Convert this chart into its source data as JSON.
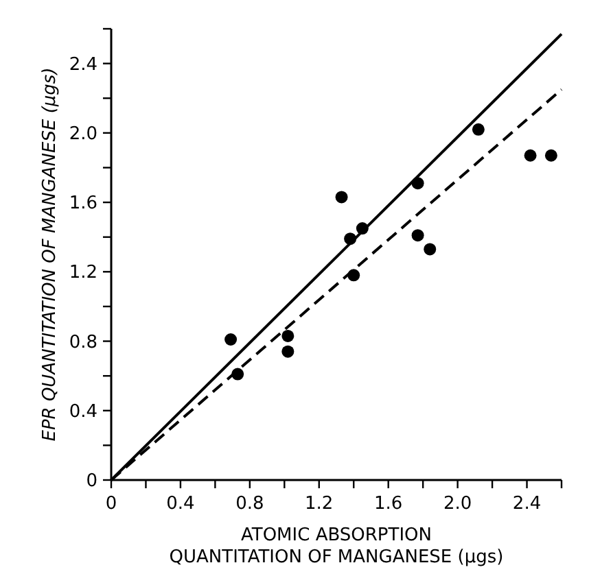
{
  "chart_data": {
    "type": "scatter",
    "xlabel": "ATOMIC ABSORPTION\nQUANTITATION OF MANGANESE (μgs)",
    "ylabel": "EPR QUANTITATION OF MANGANESE (μgs)",
    "xlim": [
      0,
      2.6
    ],
    "ylim": [
      0,
      2.6
    ],
    "xticks": [
      0,
      {
        "value": 0.2,
        "label": null
      },
      0.4,
      {
        "value": 0.6,
        "label": null
      },
      0.8,
      {
        "value": 1.0,
        "label": null
      },
      1.2,
      {
        "value": 1.4,
        "label": null
      },
      1.6,
      {
        "value": 1.8,
        "label": null
      },
      {
        "value": 2.0,
        "label": "2.0"
      },
      {
        "value": 2.2,
        "label": null
      },
      2.4,
      {
        "value": 2.6,
        "label": null
      }
    ],
    "yticks": [
      0,
      {
        "value": 0.2,
        "label": null
      },
      0.4,
      {
        "value": 0.6,
        "label": null
      },
      0.8,
      {
        "value": 1.0,
        "label": null
      },
      1.2,
      {
        "value": 1.4,
        "label": null
      },
      1.6,
      {
        "value": 1.8,
        "label": null
      },
      {
        "value": 2.0,
        "label": "2.0"
      },
      {
        "value": 2.2,
        "label": null
      },
      2.4,
      {
        "value": 2.6,
        "label": null
      }
    ],
    "grid": false,
    "marker": "circle",
    "series": [
      {
        "color": "#000000",
        "x": [
          0.69,
          0.73,
          1.02,
          1.02,
          1.33,
          1.38,
          1.45,
          1.4,
          1.77,
          1.77,
          1.84,
          2.12,
          2.42,
          2.54
        ],
        "values": [
          0.81,
          0.61,
          0.83,
          0.74,
          1.63,
          1.39,
          1.45,
          1.18,
          1.71,
          1.41,
          1.33,
          2.02,
          1.87,
          1.87
        ]
      },
      {
        "type": "line",
        "color": "#000000",
        "line_style": "solid",
        "marker": "none",
        "x": [
          0,
          2.6
        ],
        "values": [
          0,
          2.57
        ]
      },
      {
        "type": "line",
        "color": "#000000",
        "line_style": "dashed",
        "marker": "none",
        "x": [
          0,
          2.6
        ],
        "values": [
          0,
          2.25
        ]
      }
    ]
  }
}
